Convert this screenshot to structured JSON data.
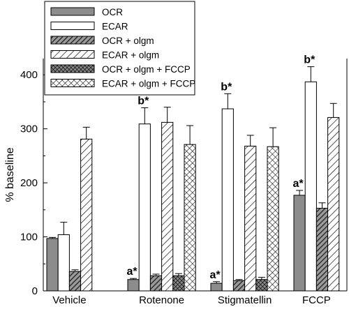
{
  "chart_data": {
    "type": "bar",
    "title": "",
    "xlabel": "",
    "ylabel": "% baseline",
    "ylim": [
      0,
      430
    ],
    "yticks": [
      0,
      100,
      200,
      300,
      400
    ],
    "grid": false,
    "legend_position": "top-left",
    "categories": [
      "Vehicle",
      "Rotenone",
      "Stigmatellin",
      "FCCP"
    ],
    "series": [
      {
        "name": "OCR",
        "fill": "#8c8c8c",
        "pattern": "solid",
        "values": [
          97,
          21,
          14,
          177
        ],
        "errors": [
          2,
          2,
          3,
          9
        ]
      },
      {
        "name": "ECAR",
        "fill": "#ffffff",
        "pattern": "solid",
        "values": [
          104,
          309,
          337,
          387
        ],
        "errors": [
          23,
          30,
          28,
          28
        ]
      },
      {
        "name": "OCR + olgm",
        "fill": "#606060",
        "pattern": "diag-dense",
        "values": [
          36,
          28,
          19,
          153
        ],
        "errors": [
          3,
          3,
          2,
          10
        ]
      },
      {
        "name": "ECAR + olgm",
        "fill": "#ffffff",
        "pattern": "diag-sparse",
        "values": [
          281,
          312,
          268,
          321
        ],
        "errors": [
          22,
          28,
          20,
          26
        ]
      },
      {
        "name": "OCR + olgm + FCCP",
        "fill": "#404040",
        "pattern": "crosshatch-dense",
        "values": [
          null,
          28,
          21,
          null
        ],
        "errors": [
          null,
          4,
          4,
          null
        ]
      },
      {
        "name": "ECAR + olgm + FCCP",
        "fill": "#ffffff",
        "pattern": "crosshatch-sparse",
        "values": [
          null,
          271,
          267,
          null
        ],
        "errors": [
          null,
          35,
          35,
          null
        ]
      }
    ],
    "annotations": [
      {
        "text": "a*",
        "category": "Rotenone",
        "series": "OCR"
      },
      {
        "text": "b*",
        "category": "Rotenone",
        "series": "ECAR"
      },
      {
        "text": "a*",
        "category": "Stigmatellin",
        "series": "OCR"
      },
      {
        "text": "b*",
        "category": "Stigmatellin",
        "series": "ECAR"
      },
      {
        "text": "a*",
        "category": "FCCP",
        "series": "OCR"
      },
      {
        "text": "b*",
        "category": "FCCP",
        "series": "ECAR"
      }
    ]
  }
}
